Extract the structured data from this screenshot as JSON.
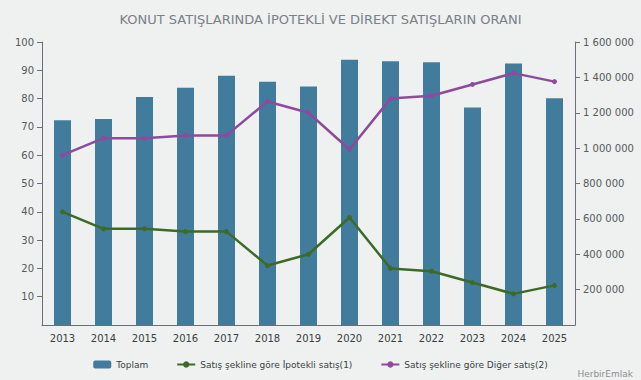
{
  "chart_data": {
    "type": "bar",
    "title": "KONUT SATIŞLARINDA İPOTEKLİ VE DİREKT SATIŞLARIN ORANI",
    "categories": [
      "2013",
      "2014",
      "2015",
      "2016",
      "2017",
      "2018",
      "2019",
      "2020",
      "2021",
      "2022",
      "2023",
      "2024",
      "2025"
    ],
    "series": [
      {
        "name": "Toplam",
        "type": "bar",
        "axis": "y2",
        "color": "#2f6f94",
        "values": [
          1157000,
          1165000,
          1289000,
          1341000,
          1409000,
          1375000,
          1348000,
          1499000,
          1491000,
          1485000,
          1230000,
          1478000,
          1282000
        ]
      },
      {
        "name": "Satış şekline göre İpotekli satış(1)",
        "type": "line",
        "color": "#3d6b27",
        "marker": "circle",
        "values": [
          40,
          34,
          34,
          33,
          33,
          21,
          25,
          38,
          20,
          19,
          15,
          11,
          14
        ]
      },
      {
        "name": "Satış şekline göre Diğer satış(2)",
        "type": "line",
        "color": "#8e4a9e",
        "marker": "circle",
        "values": [
          60,
          66,
          66,
          67,
          67,
          79,
          75,
          62,
          80,
          81,
          85,
          89,
          86
        ]
      }
    ],
    "ylim": [
      0,
      100
    ],
    "yticks": [
      10,
      20,
      30,
      40,
      50,
      60,
      70,
      80,
      90,
      100
    ],
    "y2lim": [
      0,
      1600000
    ],
    "y2ticks": [
      {
        "value": 200000,
        "label": "200 000"
      },
      {
        "value": 400000,
        "label": "400 000"
      },
      {
        "value": 600000,
        "label": "600 000"
      },
      {
        "value": 800000,
        "label": "800 000"
      },
      {
        "value": 1000000,
        "label": "1 000 000"
      },
      {
        "value": 1200000,
        "label": "1 200 000"
      },
      {
        "value": 1400000,
        "label": "1 400 000"
      },
      {
        "value": 1600000,
        "label": "1 600 000"
      }
    ],
    "grid": false,
    "legend": "bottom",
    "annotations": [
      "HerbirEmlak"
    ]
  }
}
